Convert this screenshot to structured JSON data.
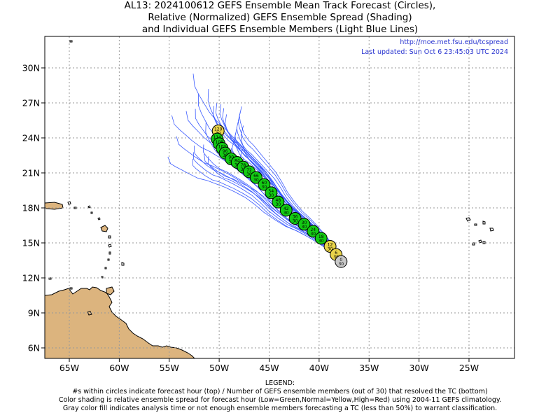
{
  "title_lines": [
    "AL13: 2024100612 GEFS Ensemble Mean Track Forecast (Circles),",
    "Relative (Normalized) GEFS Ensemble Spread (Shading)",
    "and Individual GEFS Ensemble Members (Light Blue Lines)"
  ],
  "source_url": "http://moe.met.fsu.edu/tcspread",
  "last_updated": "Last updated: Sun Oct 6 23:45:03 UTC 2024",
  "legend": {
    "heading": "LEGEND:",
    "lines": [
      "#s within circles indicate forecast hour (top) / Number of GEFS ensemble members (out of 30) that resolved the TC (bottom)",
      "Color shading is relative ensemble spread for forecast hour (Low=Green,Normal=Yellow,High=Red) using 2004-11 GEFS climatology.",
      "Gray color fill indicates analysis time or not enough ensemble members forecasting a TC (less than 50%) to warrant classification."
    ]
  },
  "lon_ticks": [
    "65W",
    "60W",
    "55W",
    "50W",
    "45W",
    "40W",
    "35W",
    "30W",
    "25W"
  ],
  "lat_ticks": [
    "6N",
    "9N",
    "12N",
    "15N",
    "18N",
    "21N",
    "24N",
    "27N",
    "30N"
  ],
  "colors": {
    "gray": "#c8c8c8",
    "green": "#13cc13",
    "yellow": "#e9d44a",
    "member": "#3b5bff",
    "land": "#dcb47e"
  },
  "track": [
    {
      "h": "0",
      "m": "30",
      "lon": -37.8,
      "lat": 13.4,
      "c": "gray"
    },
    {
      "h": "6",
      "m": "30",
      "lon": -38.3,
      "lat": 14.0,
      "c": "yellow"
    },
    {
      "h": "12",
      "m": "30",
      "lon": -38.9,
      "lat": 14.7,
      "c": "yellow"
    },
    {
      "h": "18",
      "m": "30",
      "lon": -39.8,
      "lat": 15.4,
      "c": "green"
    },
    {
      "h": "24",
      "m": "30",
      "lon": -40.6,
      "lat": 16.0,
      "c": "green"
    },
    {
      "h": "30",
      "m": "30",
      "lon": -41.5,
      "lat": 16.6,
      "c": "green"
    },
    {
      "h": "36",
      "m": "30",
      "lon": -42.4,
      "lat": 17.1,
      "c": "green"
    },
    {
      "h": "42",
      "m": "30",
      "lon": -43.3,
      "lat": 17.8,
      "c": "green"
    },
    {
      "h": "48",
      "m": "30",
      "lon": -44.1,
      "lat": 18.5,
      "c": "green"
    },
    {
      "h": "54",
      "m": "30",
      "lon": -44.8,
      "lat": 19.3,
      "c": "green"
    },
    {
      "h": "60",
      "m": "30",
      "lon": -45.5,
      "lat": 20.0,
      "c": "green"
    },
    {
      "h": "66",
      "m": "30",
      "lon": -46.3,
      "lat": 20.6,
      "c": "green"
    },
    {
      "h": "72",
      "m": "30",
      "lon": -47.0,
      "lat": 21.1,
      "c": "green"
    },
    {
      "h": "78",
      "m": "30",
      "lon": -47.6,
      "lat": 21.5,
      "c": "green"
    },
    {
      "h": "84",
      "m": "30",
      "lon": -48.2,
      "lat": 21.9,
      "c": "green"
    },
    {
      "h": "90",
      "m": "30",
      "lon": -48.8,
      "lat": 22.2,
      "c": "green"
    },
    {
      "h": "96",
      "m": "30",
      "lon": -49.4,
      "lat": 22.7,
      "c": "green"
    },
    {
      "h": "102",
      "m": "30",
      "lon": -49.7,
      "lat": 23.1,
      "c": "green"
    },
    {
      "h": "108",
      "m": "30",
      "lon": -50.0,
      "lat": 23.5,
      "c": "green"
    },
    {
      "h": "114",
      "m": "30",
      "lon": -50.2,
      "lat": 23.9,
      "c": "green"
    },
    {
      "h": "120",
      "m": "30",
      "lon": -50.1,
      "lat": 24.6,
      "c": "yellow"
    }
  ]
}
